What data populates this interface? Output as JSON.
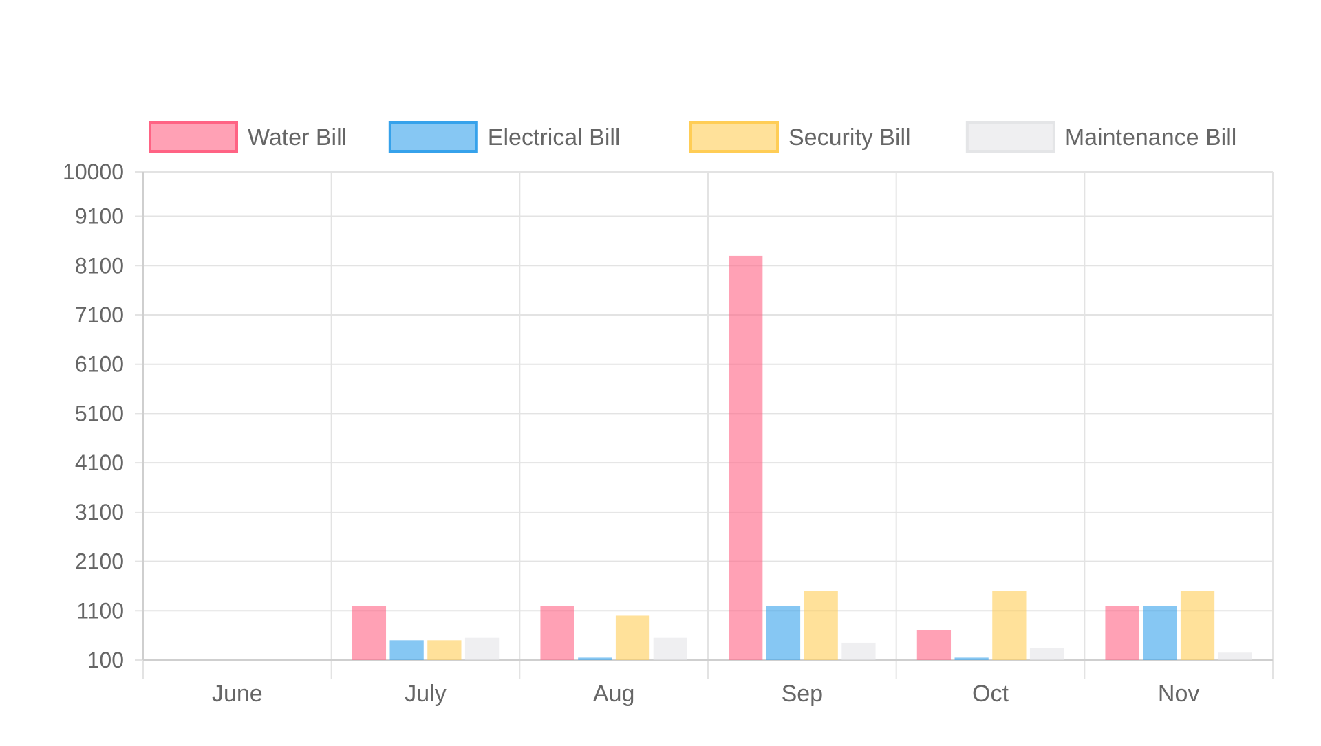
{
  "chart_data": {
    "type": "bar",
    "title": "",
    "xlabel": "",
    "ylabel": "",
    "categories": [
      "June",
      "July",
      "Aug",
      "Sep",
      "Oct",
      "Nov"
    ],
    "y_ticks": [
      100,
      1100,
      2100,
      3100,
      4100,
      5100,
      6100,
      7100,
      8100,
      9100,
      10000
    ],
    "ylim": [
      100,
      10000
    ],
    "grid": true,
    "legend_position": "top",
    "series": [
      {
        "name": "Water Bill",
        "color": "#ff6384",
        "values": [
          0,
          1200,
          1200,
          8300,
          700,
          1200
        ]
      },
      {
        "name": "Electrical Bill",
        "color": "#36a2eb",
        "values": [
          0,
          500,
          150,
          1200,
          150,
          1200
        ]
      },
      {
        "name": "Security Bill",
        "color": "#ffcd56",
        "values": [
          0,
          500,
          1000,
          1500,
          1500,
          1500
        ]
      },
      {
        "name": "Maintenance Bill",
        "color": "#e4e5e7",
        "values": [
          0,
          550,
          550,
          450,
          350,
          250
        ]
      }
    ]
  }
}
